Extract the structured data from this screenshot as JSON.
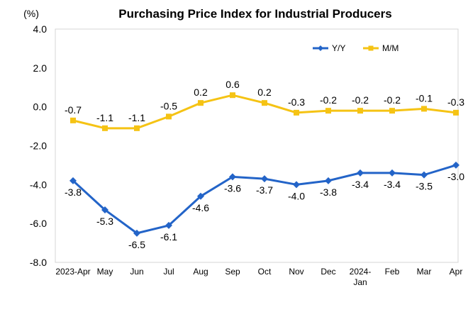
{
  "chart_data": {
    "type": "line",
    "title": "Purchasing Price Index for Industrial Producers",
    "unit_label": "(%)",
    "xlabel": "",
    "ylabel": "",
    "ylim": [
      -8.0,
      4.0
    ],
    "yticks": [
      4.0,
      2.0,
      0.0,
      -2.0,
      -4.0,
      -6.0,
      -8.0
    ],
    "ytick_labels": [
      "4.0",
      "2.0",
      "0.0",
      "-2.0",
      "-4.0",
      "-6.0",
      "-8.0"
    ],
    "grid": false,
    "legend_position": "top-right",
    "categories": [
      [
        "2023-Apr"
      ],
      [
        "May"
      ],
      [
        "Jun"
      ],
      [
        "Jul"
      ],
      [
        "Aug"
      ],
      [
        "Sep"
      ],
      [
        "Oct"
      ],
      [
        "Nov"
      ],
      [
        "Dec"
      ],
      [
        "2024-",
        "Jan"
      ],
      [
        "Feb"
      ],
      [
        "Mar"
      ],
      [
        "Apr"
      ]
    ],
    "series": [
      {
        "name": "Y/Y",
        "color": "#2364c8",
        "marker": "diamond",
        "label_position": "below",
        "values": [
          -3.8,
          -5.3,
          -6.5,
          -6.1,
          -4.6,
          -3.6,
          -3.7,
          -4.0,
          -3.8,
          -3.4,
          -3.4,
          -3.5,
          -3.0
        ],
        "labels": [
          "-3.8",
          "-5.3",
          "-6.5",
          "-6.1",
          "-4.6",
          "-3.6",
          "-3.7",
          "-4.0",
          "-3.8",
          "-3.4",
          "-3.4",
          "-3.5",
          "-3.0"
        ]
      },
      {
        "name": "M/M",
        "color": "#f5c314",
        "marker": "square",
        "label_position": "above",
        "values": [
          -0.7,
          -1.1,
          -1.1,
          -0.5,
          0.2,
          0.6,
          0.2,
          -0.3,
          -0.2,
          -0.2,
          -0.2,
          -0.1,
          -0.3
        ],
        "labels": [
          "-0.7",
          "-1.1",
          "-1.1",
          "-0.5",
          "0.2",
          "0.6",
          "0.2",
          "-0.3",
          "-0.2",
          "-0.2",
          "-0.2",
          "-0.1",
          "-0.3"
        ]
      }
    ]
  }
}
